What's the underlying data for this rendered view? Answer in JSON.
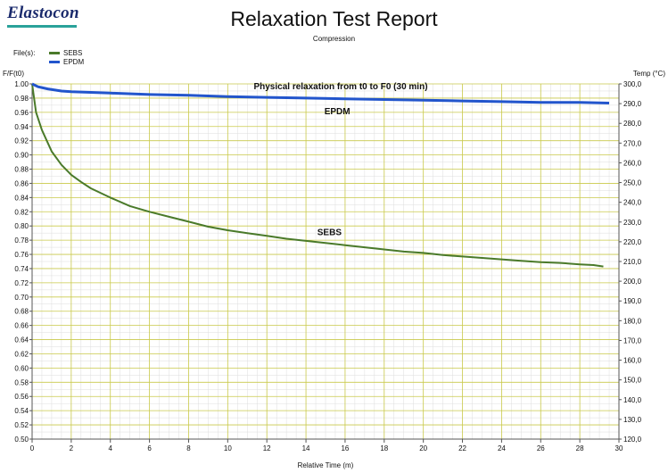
{
  "header": {
    "logo": "Elastocon",
    "title": "Relaxation Test Report",
    "subtitle": "Compression",
    "files_label": "File(s):"
  },
  "colors": {
    "SEBS": "#4a7a2a",
    "EPDM": "#2255cc",
    "grid_major": "#c9c94a",
    "grid_minor": "#dddddd"
  },
  "chart_data": {
    "type": "line",
    "title": "Physical relaxation from t0 to F0 (30 min)",
    "xlabel": "Relative Time (m)",
    "ylabel": "F/F(t0)",
    "y2label": "Temp (°C)",
    "xlim": [
      0,
      30
    ],
    "ylim": [
      0.5,
      1.0
    ],
    "y2lim": [
      120.0,
      300.0
    ],
    "x_ticks": [
      "0",
      "2",
      "4",
      "6",
      "8",
      "10",
      "12",
      "14",
      "16",
      "18",
      "20",
      "22",
      "24",
      "26",
      "28",
      "30"
    ],
    "y_ticks": [
      "1.00",
      "0.98",
      "0.96",
      "0.94",
      "0.92",
      "0.90",
      "0.88",
      "0.86",
      "0.84",
      "0.82",
      "0.80",
      "0.78",
      "0.76",
      "0.74",
      "0.72",
      "0.70",
      "0.68",
      "0.66",
      "0.64",
      "0.62",
      "0.60",
      "0.58",
      "0.56",
      "0.54",
      "0.52",
      "0.50"
    ],
    "y2_ticks": [
      "300,0",
      "290,0",
      "280,0",
      "270,0",
      "260,0",
      "250,0",
      "240,0",
      "230,0",
      "220,0",
      "210,0",
      "200,0",
      "190,0",
      "180,0",
      "170,0",
      "160,0",
      "150,0",
      "140,0",
      "130,0",
      "120,0"
    ],
    "grid": true,
    "legend": "top-left",
    "series": [
      {
        "name": "SEBS",
        "x": [
          0,
          0.2,
          0.5,
          1,
          1.5,
          2,
          2.5,
          3,
          4,
          5,
          6,
          7,
          8,
          9,
          10,
          11,
          12,
          13,
          14,
          15,
          16,
          17,
          18,
          19,
          20,
          21,
          22,
          23,
          24,
          25,
          26,
          27,
          28,
          28.7,
          29.2
        ],
        "values": [
          1.0,
          0.96,
          0.935,
          0.905,
          0.886,
          0.872,
          0.862,
          0.853,
          0.84,
          0.828,
          0.82,
          0.813,
          0.806,
          0.799,
          0.794,
          0.79,
          0.786,
          0.782,
          0.779,
          0.776,
          0.773,
          0.77,
          0.767,
          0.764,
          0.762,
          0.759,
          0.757,
          0.755,
          0.753,
          0.751,
          0.749,
          0.748,
          0.746,
          0.745,
          0.743
        ]
      },
      {
        "name": "EPDM",
        "x": [
          0,
          0.3,
          0.8,
          1.5,
          2,
          4,
          6,
          8,
          10,
          12,
          14,
          16,
          18,
          20,
          22,
          24,
          26,
          28,
          29.5
        ],
        "values": [
          1.0,
          0.996,
          0.993,
          0.99,
          0.989,
          0.987,
          0.985,
          0.984,
          0.982,
          0.981,
          0.98,
          0.979,
          0.978,
          0.977,
          0.976,
          0.975,
          0.974,
          0.974,
          0.973
        ]
      }
    ],
    "annotations": [
      {
        "text": "EPDM",
        "x": 15.6,
        "y": 0.957
      },
      {
        "text": "SEBS",
        "x": 15.2,
        "y": 0.787
      }
    ]
  }
}
